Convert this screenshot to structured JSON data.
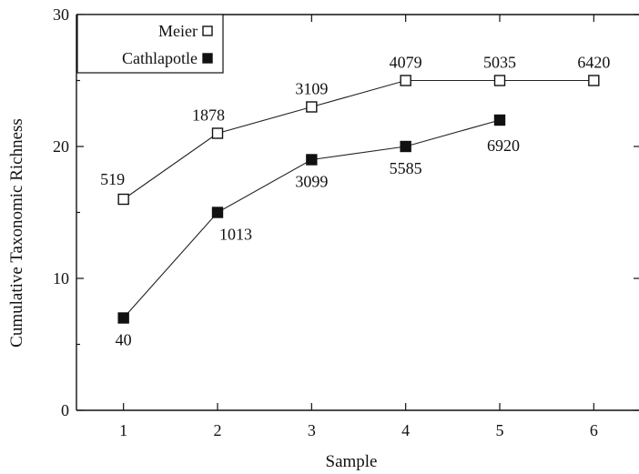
{
  "chart_data": {
    "type": "line",
    "xlabel": "Sample",
    "ylabel": "Cumulative Taxonomic Richness",
    "xlim": [
      0.5,
      6.5
    ],
    "ylim": [
      0,
      30
    ],
    "xticks": [
      1,
      2,
      3,
      4,
      5,
      6
    ],
    "yticks": [
      0,
      10,
      20,
      30
    ],
    "grid": false,
    "legend_position": "top-left",
    "series": [
      {
        "name": "Meier",
        "marker": "open-square",
        "x": [
          1,
          2,
          3,
          4,
          5,
          6
        ],
        "y": [
          16,
          21,
          23,
          25,
          25,
          25
        ],
        "point_labels": [
          "519",
          "1878",
          "3109",
          "4079",
          "5035",
          "6420"
        ]
      },
      {
        "name": "Cathlapotle",
        "marker": "filled-square",
        "x": [
          1,
          2,
          3,
          4,
          5
        ],
        "y": [
          7,
          15,
          19,
          20,
          22
        ],
        "point_labels": [
          "40",
          "1013",
          "3099",
          "5585",
          "6920"
        ]
      }
    ]
  }
}
